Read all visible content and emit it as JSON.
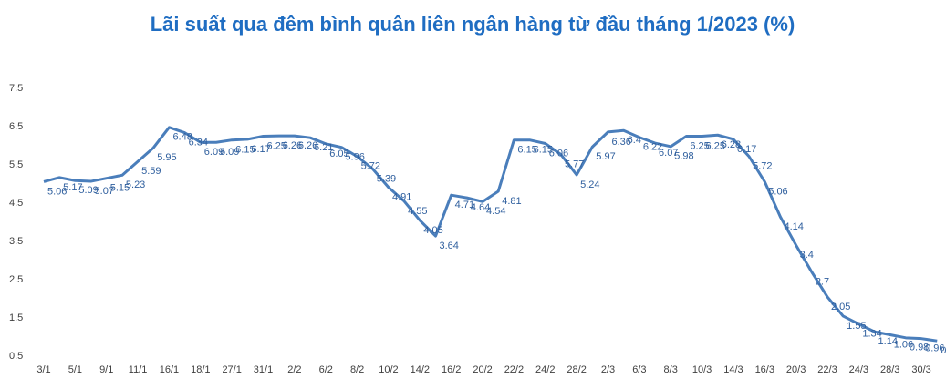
{
  "chart_data": {
    "type": "line",
    "title": "Lãi suất qua đêm bình quân liên ngân hàng từ đầu tháng 1/2023 (%)",
    "categories": [
      "3/1",
      null,
      "5/1",
      null,
      "9/1",
      null,
      "11/1",
      null,
      "16/1",
      null,
      "18/1",
      null,
      "27/1",
      null,
      "31/1",
      null,
      "2/2",
      null,
      "6/2",
      null,
      "8/2",
      null,
      "10/2",
      null,
      "14/2",
      null,
      "16/2",
      null,
      "20/2",
      null,
      "22/2",
      null,
      "24/2",
      null,
      "28/2",
      null,
      "2/3",
      null,
      "6/3",
      null,
      "8/3",
      null,
      "10/3",
      null,
      "14/3",
      null,
      "16/3",
      null,
      "20/3",
      null,
      "22/3",
      null,
      "24/3",
      null,
      "28/3",
      null,
      "30/3",
      null
    ],
    "values": [
      5.06,
      5.17,
      5.09,
      5.07,
      5.15,
      5.23,
      5.59,
      5.95,
      6.48,
      6.34,
      6.09,
      6.09,
      6.15,
      6.17,
      6.25,
      6.26,
      6.26,
      6.21,
      6.05,
      5.96,
      5.72,
      5.39,
      4.91,
      4.55,
      4.05,
      3.64,
      4.71,
      4.64,
      4.54,
      4.81,
      6.15,
      6.15,
      6.06,
      5.77,
      5.24,
      5.97,
      6.36,
      6.4,
      6.22,
      6.07,
      5.98,
      6.25,
      6.25,
      6.28,
      6.17,
      5.72,
      5.06,
      4.14,
      3.4,
      2.7,
      2.05,
      1.55,
      1.34,
      1.14,
      1.06,
      0.98,
      0.96,
      0.9
    ],
    "color": "#4a7ebb",
    "ylim": [
      0.5,
      7.5
    ],
    "yticks": [
      0.5,
      1.5,
      2.5,
      3.5,
      4.5,
      5.5,
      6.5,
      7.5
    ],
    "grid": false
  }
}
